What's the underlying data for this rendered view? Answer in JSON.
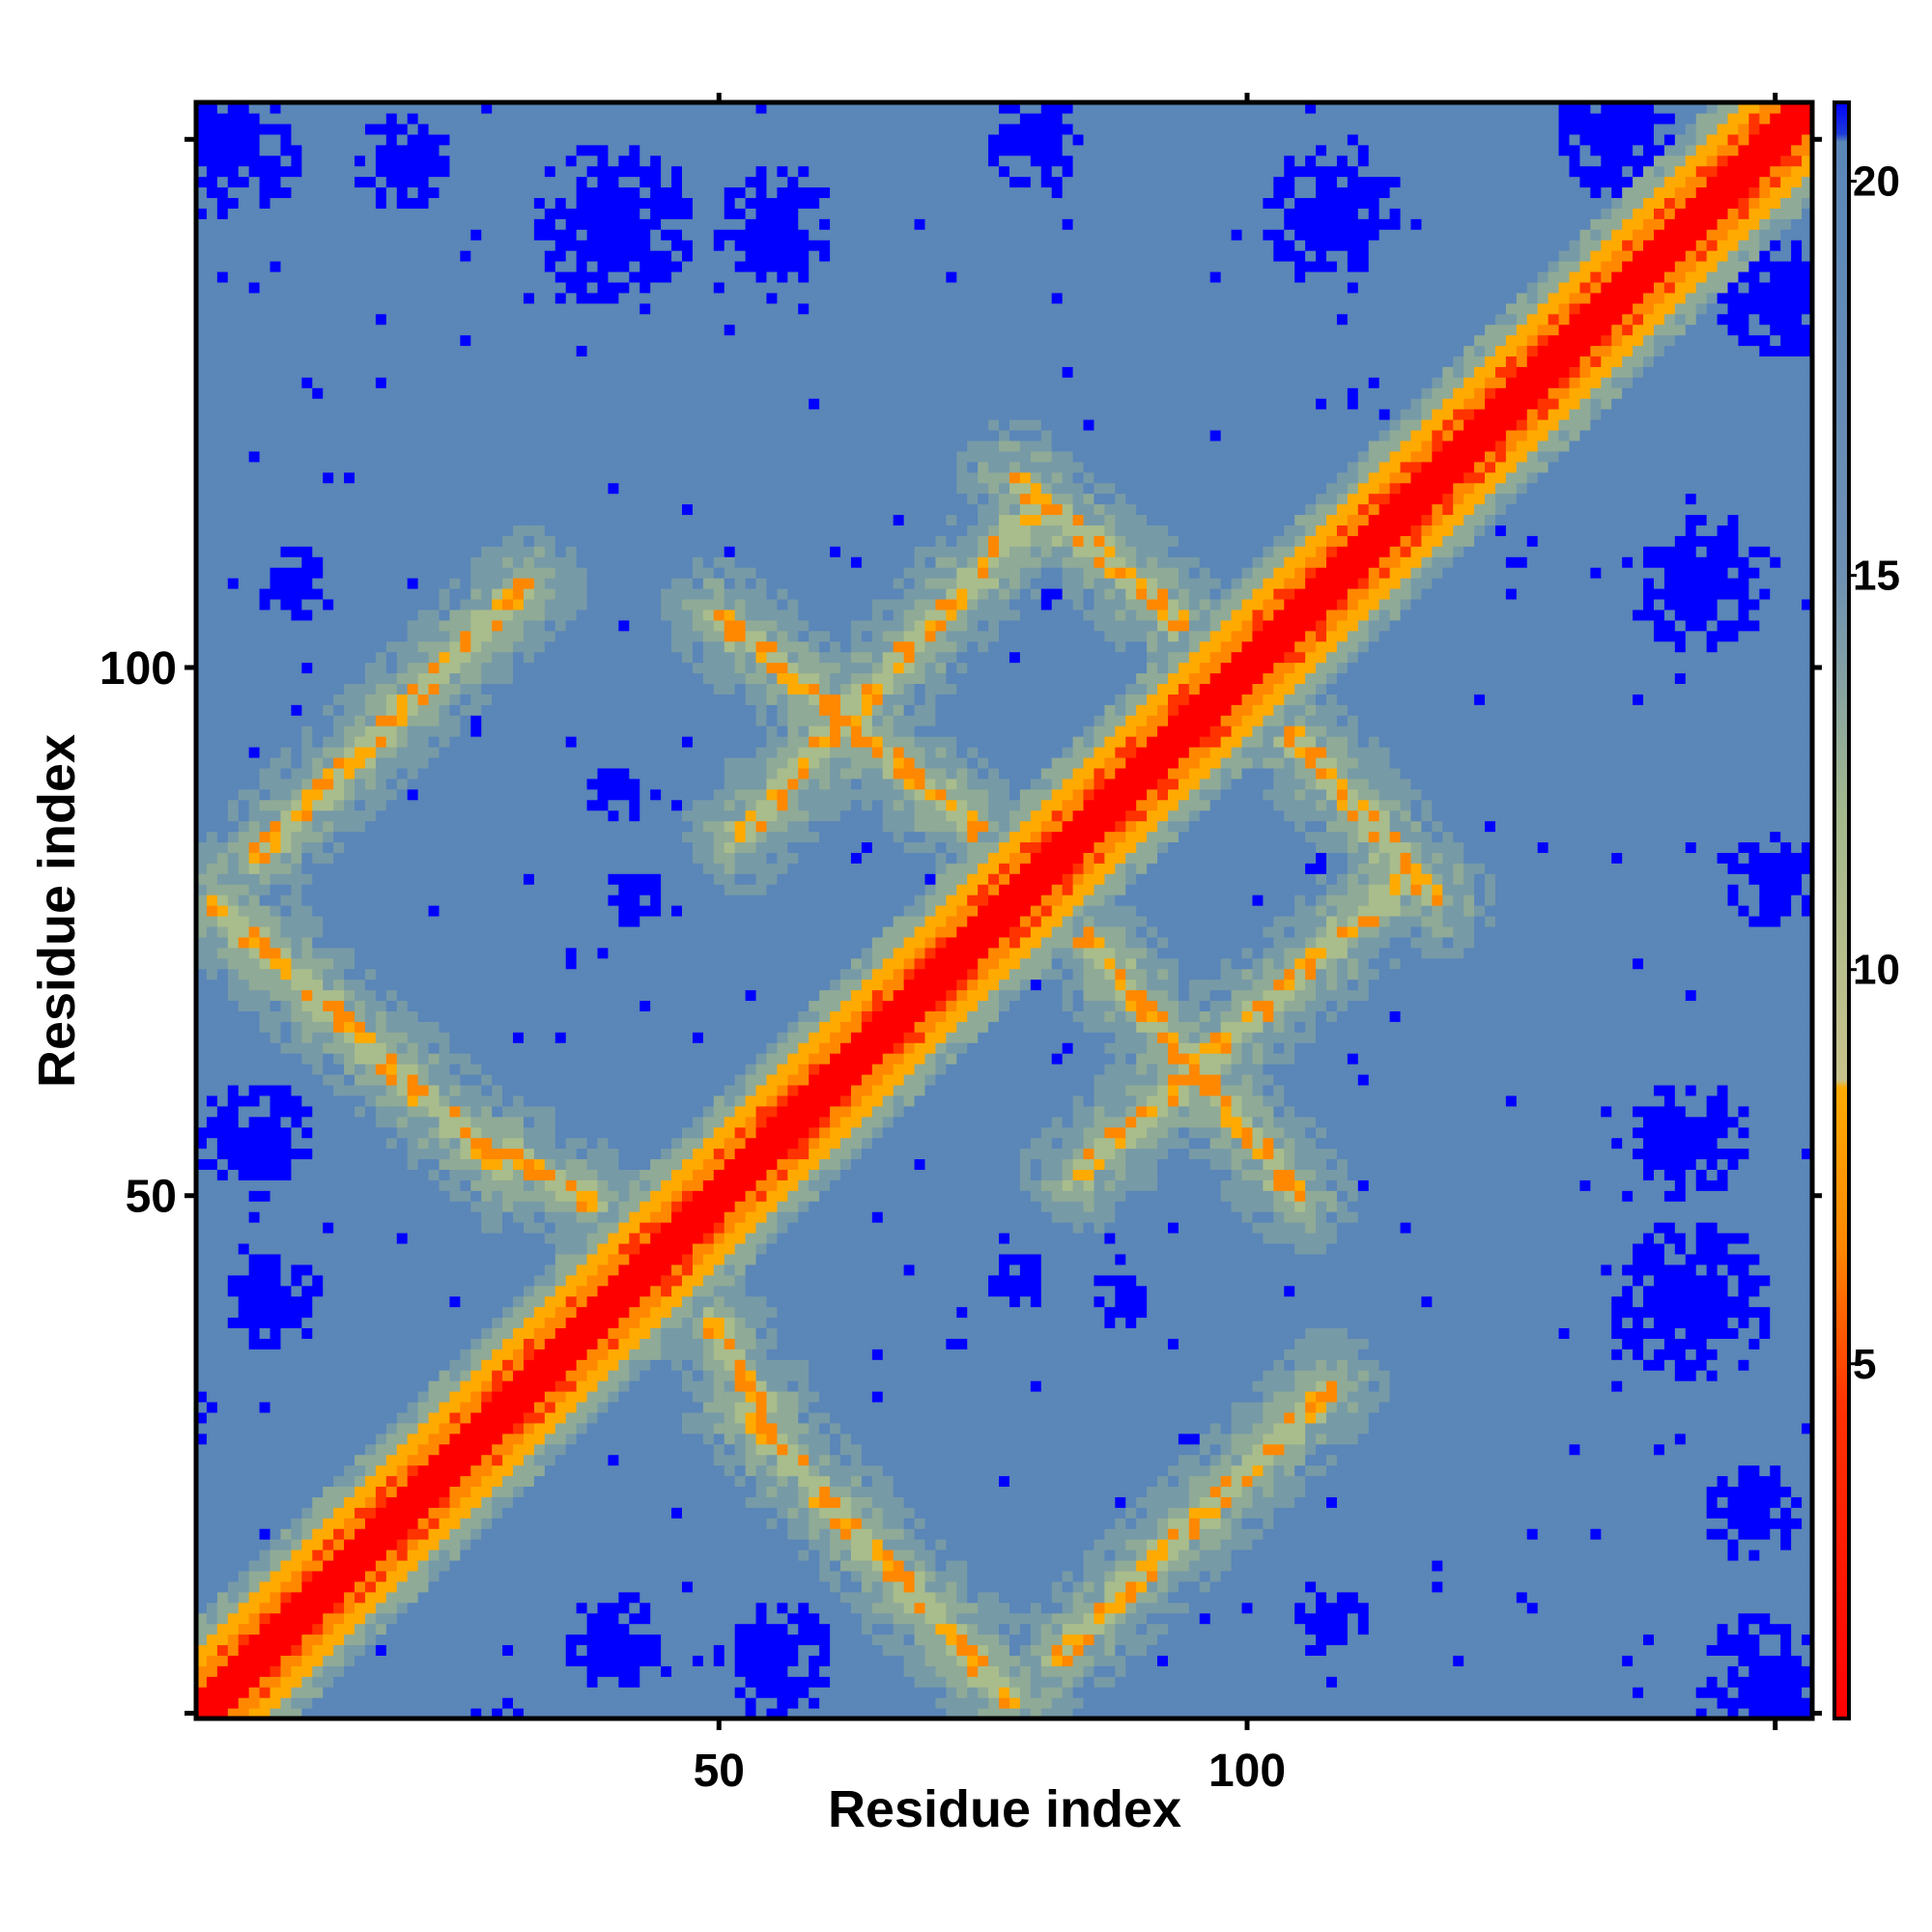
{
  "chart_data": {
    "type": "heatmap",
    "title": "",
    "xlabel": "Residue index",
    "ylabel": "Residue index",
    "xlim": [
      1,
      153
    ],
    "ylim": [
      1,
      153
    ],
    "x_ticks": [
      {
        "value": 50,
        "label": "50"
      },
      {
        "value": 100,
        "label": "100"
      },
      {
        "value": 150,
        "label": ""
      }
    ],
    "y_ticks": [
      {
        "value": 1,
        "label": ""
      },
      {
        "value": 50,
        "label": "50"
      },
      {
        "value": 100,
        "label": "100"
      },
      {
        "value": 150,
        "label": ""
      }
    ],
    "top_ticks": [
      50,
      100,
      150
    ],
    "right_ticks": [
      1,
      50,
      100,
      150
    ],
    "colorbar": {
      "range": [
        0.5,
        21.0
      ],
      "ticks": [
        {
          "value": 5,
          "label": "5"
        },
        {
          "value": 10,
          "label": "10"
        },
        {
          "value": 15,
          "label": "15"
        },
        {
          "value": 20,
          "label": "20"
        }
      ],
      "stops": [
        {
          "value": 0.5,
          "color": "#ff0000"
        },
        {
          "value": 4.5,
          "color": "#ff3300"
        },
        {
          "value": 6.5,
          "color": "#ff8800"
        },
        {
          "value": 8.5,
          "color": "#ffaa00"
        },
        {
          "value": 8.6,
          "color": "#c7c28c"
        },
        {
          "value": 12.0,
          "color": "#a3b88c"
        },
        {
          "value": 15.0,
          "color": "#6d90b3"
        },
        {
          "value": 20.5,
          "color": "#5a86b8"
        },
        {
          "value": 20.6,
          "color": "#1e3cd8"
        },
        {
          "value": 21.0,
          "color": "#0000ff"
        }
      ]
    },
    "description_of_values": "Residue-residue distance map (Angstrom). Diagonal band red/orange (<8), beta-sheet-like anti-diagonal stripes in green/orange, background steel blue (~20), far-contact blobs saturated blue (>20)."
  },
  "colors": {
    "background_mid": "#5a86b8",
    "far": "#0000ff",
    "near": "#ff0000",
    "contact": "#ff8800",
    "intermediate": "#a8bc8c"
  }
}
